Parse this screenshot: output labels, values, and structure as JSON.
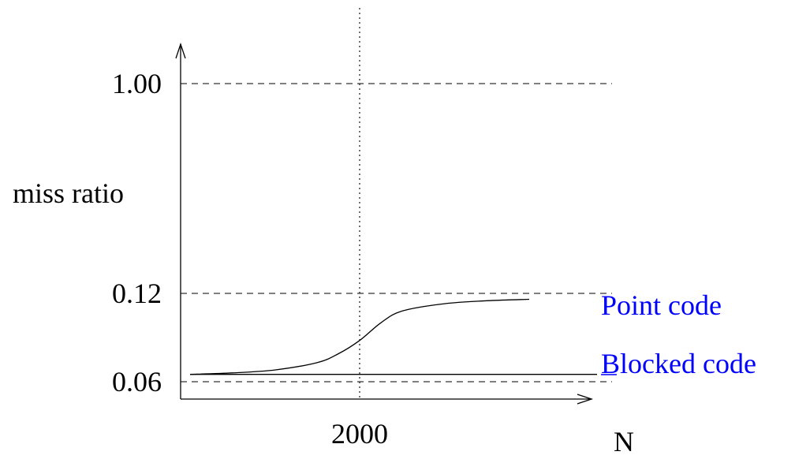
{
  "chart_data": {
    "type": "line",
    "title": "",
    "xlabel": "N",
    "ylabel": "miss ratio",
    "x_ticks": [
      {
        "value": 2000,
        "label": "2000"
      }
    ],
    "y_ticks": [
      {
        "value": 0.06,
        "label": "0.06"
      },
      {
        "value": 0.12,
        "label": "0.12"
      },
      {
        "value": 1.0,
        "label": "1.00"
      }
    ],
    "reference_lines": {
      "horizontal": [
        0.06,
        0.12,
        1.0
      ],
      "vertical": [
        2000
      ]
    },
    "series": [
      {
        "name": "Point code",
        "color": "#0000ff",
        "x": [
          0,
          500,
          1000,
          1500,
          1750,
          2000,
          2250,
          2500,
          3000,
          3500,
          4000
        ],
        "y": [
          0.065,
          0.066,
          0.068,
          0.073,
          0.079,
          0.088,
          0.1,
          0.108,
          0.113,
          0.115,
          0.116
        ]
      },
      {
        "name": "Blocked code",
        "color": "#0000ff",
        "x": [
          0,
          4000,
          4800
        ],
        "y": [
          0.065,
          0.065,
          0.065
        ]
      }
    ]
  }
}
